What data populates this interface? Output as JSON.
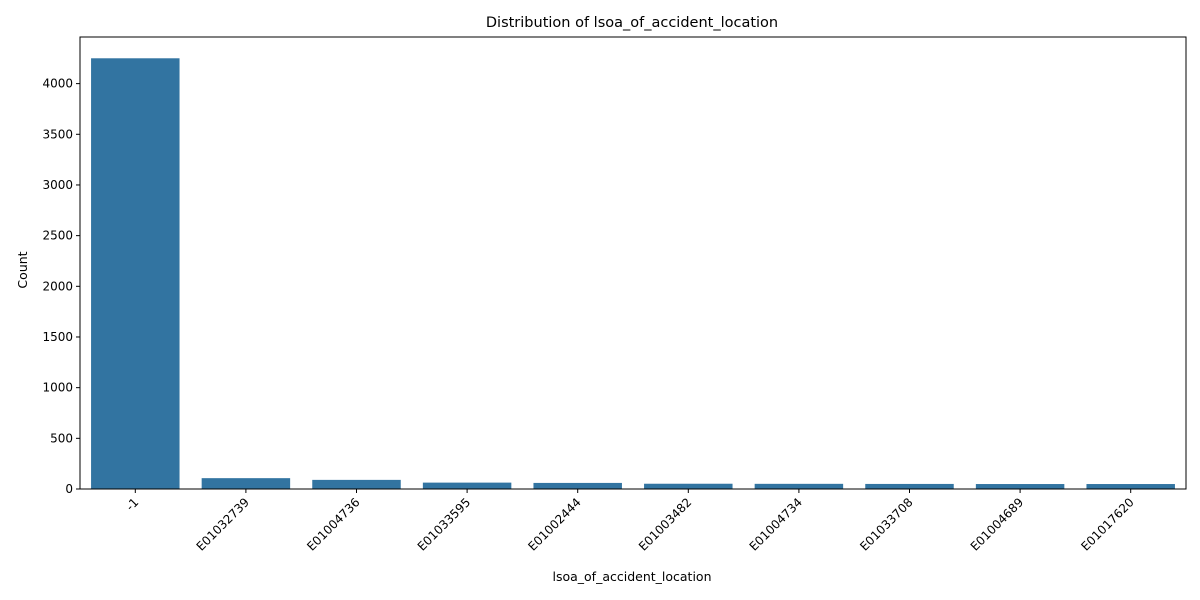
{
  "chart_data": {
    "type": "bar",
    "title": "Distribution of lsoa_of_accident_location",
    "xlabel": "lsoa_of_accident_location",
    "ylabel": "Count",
    "categories": [
      "-1",
      "E01032739",
      "E01004736",
      "E01033595",
      "E01002444",
      "E01003482",
      "E01004734",
      "E01033708",
      "E01004689",
      "E01017620"
    ],
    "values": [
      4250,
      107,
      90,
      63,
      60,
      52,
      51,
      50,
      49,
      49
    ],
    "ylim": [
      0,
      4460
    ],
    "yticks": [
      0,
      500,
      1000,
      1500,
      2000,
      2500,
      3000,
      3500,
      4000
    ],
    "bar_color": "#3274a1",
    "grid": false,
    "legend": "none"
  }
}
